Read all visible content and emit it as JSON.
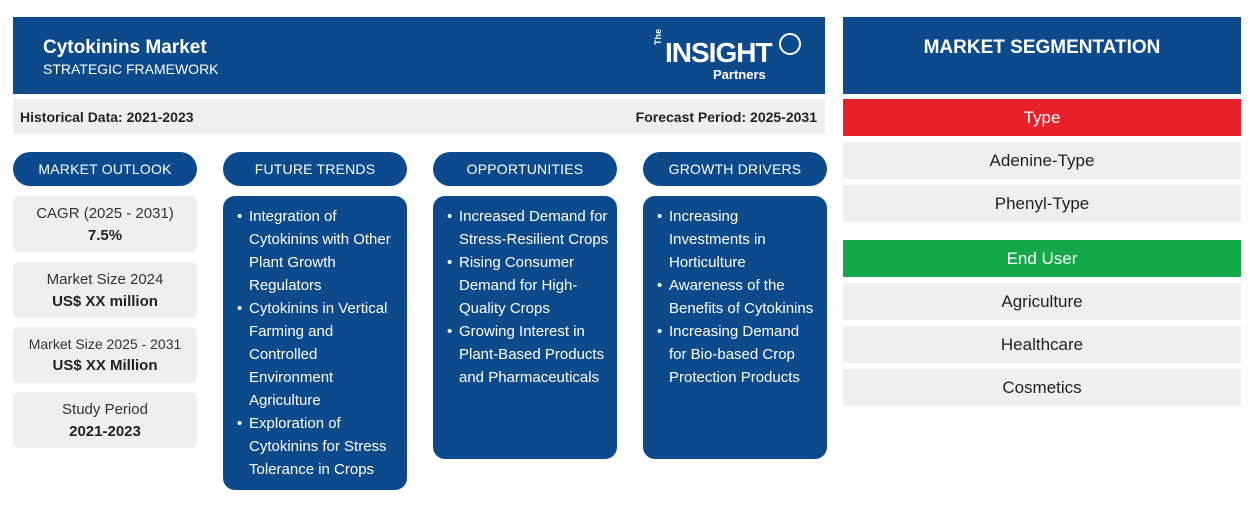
{
  "header": {
    "title": "Cytokinins Market",
    "subtitle": "STRATEGIC FRAMEWORK",
    "logo": {
      "the": "The",
      "insight": "INSIGHT",
      "partners": "Partners"
    }
  },
  "periods": {
    "historical": "Historical Data: 2021-2023",
    "forecast": "Forecast Period: 2025-2031"
  },
  "market_outlook": {
    "heading": "MARKET OUTLOOK",
    "cards": [
      {
        "label": "CAGR (2025 - 2031)",
        "value": "7.5%"
      },
      {
        "label": "Market Size 2024",
        "value": "US$ XX million"
      },
      {
        "label": "Market Size 2025 - 2031",
        "value": "US$ XX Million"
      },
      {
        "label": "Study Period",
        "value": "2021-2023"
      }
    ]
  },
  "future_trends": {
    "heading": "FUTURE TRENDS",
    "items": [
      "Integration of Cytokinins with Other Plant Growth Regulators",
      "Cytokinins in Vertical Farming and Controlled Environment Agriculture",
      "Exploration of Cytokinins for Stress Tolerance in Crops"
    ]
  },
  "opportunities": {
    "heading": "OPPORTUNITIES",
    "items": [
      "Increased Demand for Stress-Resilient Crops",
      "Rising Consumer Demand for High-Quality Crops",
      "Growing Interest in Plant-Based Products and Pharmaceuticals"
    ]
  },
  "growth_drivers": {
    "heading": "GROWTH DRIVERS",
    "items": [
      "Increasing Investments in Horticulture",
      "Awareness of the Benefits of Cytokinins",
      "Increasing Demand for Bio-based Crop Protection Products"
    ]
  },
  "segmentation": {
    "title": "MARKET SEGMENTATION",
    "groups": [
      {
        "heading": "Type",
        "color": "#e8202a",
        "items": [
          "Adenine-Type",
          "Phenyl-Type"
        ]
      },
      {
        "heading": "End User",
        "color": "#14a84b",
        "items": [
          "Agriculture",
          "Healthcare",
          "Cosmetics"
        ]
      }
    ]
  },
  "colors": {
    "primary_blue": "#0d4a8c",
    "light_gray": "#efefef"
  }
}
